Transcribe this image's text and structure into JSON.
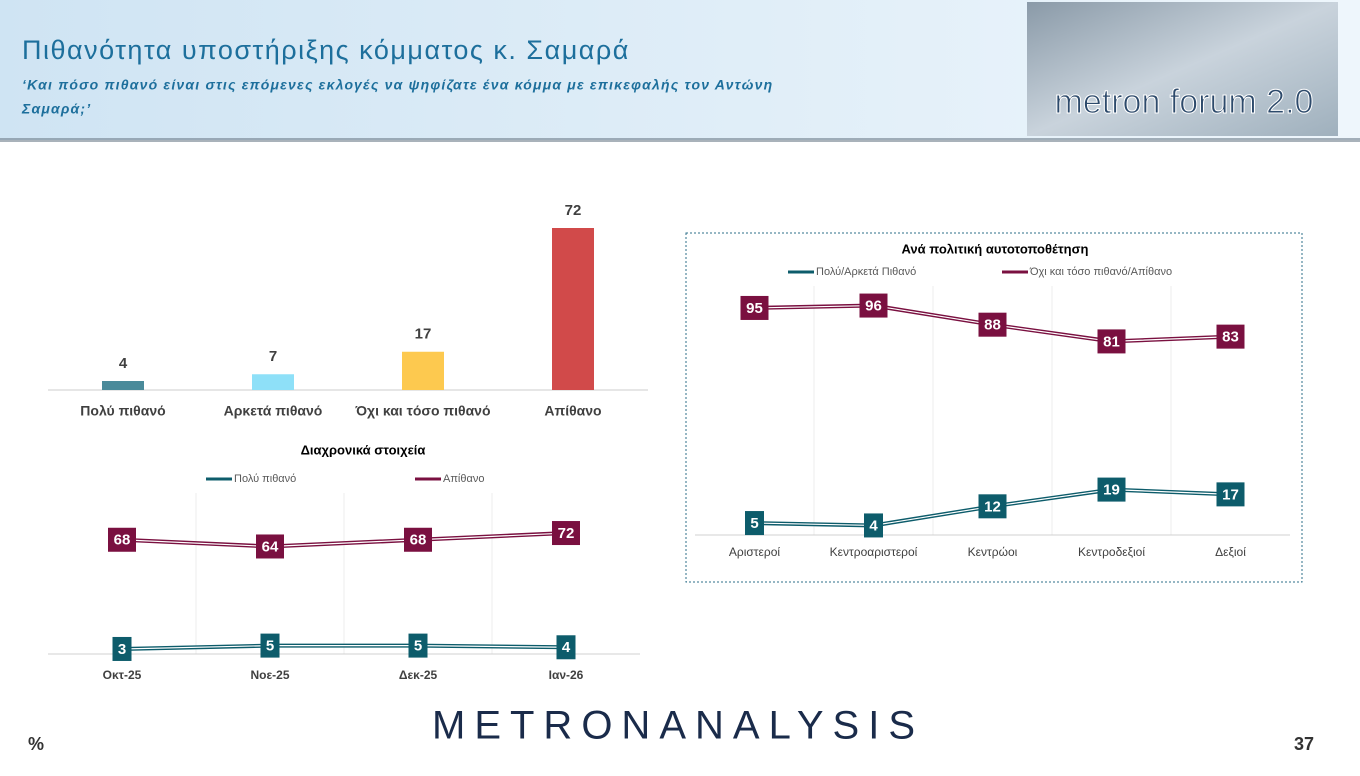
{
  "header": {
    "title": "Πιθανότητα υποστήριξης κόμματος κ. Σαμαρά",
    "subtitle": [
      "‘Και πόσο πιθανό είναι στις επόμενες εκλογές να ψηφίζατε ένα κόμμα με επικεφαλής τον Αντώνη",
      "Σαμαρά;’"
    ],
    "logo": "metron forum 2.0"
  },
  "footer": {
    "brand": "METRONANALYSIS",
    "unit": "%",
    "page": "37"
  },
  "chart_data": [
    {
      "type": "bar",
      "categories": [
        "Πολύ πιθανό",
        "Αρκετά πιθανό",
        "Όχι και τόσο πιθανό",
        "Απίθανο"
      ],
      "values": [
        4,
        7,
        17,
        72
      ],
      "colors": [
        "#4a8a9a",
        "#8ee0f8",
        "#fdc94f",
        "#d14a4a"
      ]
    },
    {
      "type": "line",
      "title": "Διαχρονικά στοιχεία",
      "categories": [
        "Οκτ-25",
        "Νοε-25",
        "Δεκ-25",
        "Ιαν-26"
      ],
      "series": [
        {
          "name": "Πολύ πιθανό",
          "color": "#0d5c6b",
          "values": [
            3,
            5,
            5,
            4
          ]
        },
        {
          "name": "Απίθανο",
          "color": "#7a1040",
          "values": [
            68,
            64,
            68,
            72
          ]
        }
      ]
    },
    {
      "type": "line",
      "title": "Ανά πολιτική αυτοτοποθέτηση",
      "categories": [
        "Αριστεροί",
        "Κεντροαριστεροί",
        "Κεντρώοι",
        "Κεντροδεξιοί",
        "Δεξιοί"
      ],
      "series": [
        {
          "name": "Πολύ/Αρκετά Πιθανό",
          "color": "#0d5c6b",
          "values": [
            5,
            4,
            12,
            19,
            17
          ]
        },
        {
          "name": "Όχι και τόσο πιθανό/Απίθανο",
          "color": "#7a1040",
          "values": [
            95,
            96,
            88,
            81,
            83
          ]
        }
      ]
    }
  ]
}
